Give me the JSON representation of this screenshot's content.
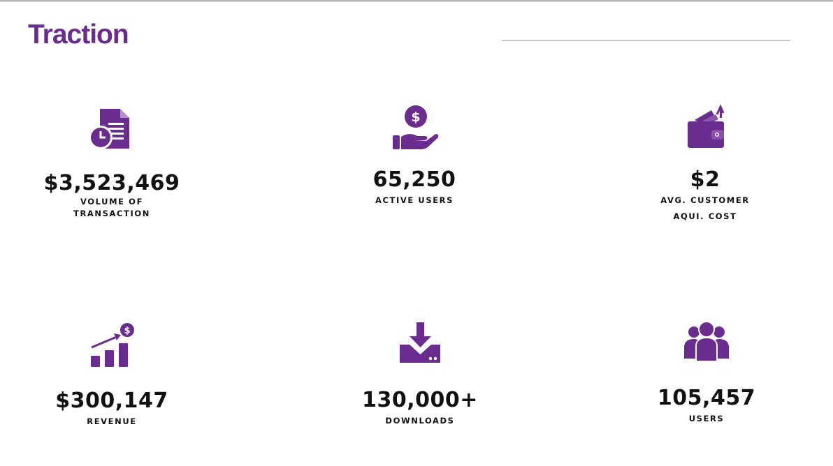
{
  "slide": {
    "title": "Traction"
  },
  "colors": {
    "accent": "#6a2c8e",
    "text": "#111111",
    "rule": "#c8c8c8"
  },
  "stats": [
    {
      "id": "volume",
      "icon": "document-clock-icon",
      "value": "$3,523,469",
      "label_lines": [
        "VOLUME OF",
        "TRANSACTION"
      ]
    },
    {
      "id": "active",
      "icon": "hand-coin-icon",
      "value": "65,250",
      "label_lines": [
        "ACTIVE USERS"
      ]
    },
    {
      "id": "cac",
      "icon": "wallet-icon",
      "value": "$2",
      "label_lines": [
        "AVG. CUSTOMER",
        "AQUI. COST"
      ]
    },
    {
      "id": "revenue",
      "icon": "revenue-growth-icon",
      "value": "$300,147",
      "label_lines": [
        "REVENUE"
      ]
    },
    {
      "id": "downloads",
      "icon": "download-icon",
      "value": "130,000+",
      "label_lines": [
        "DOWNLOADS"
      ]
    },
    {
      "id": "users",
      "icon": "users-group-icon",
      "value": "105,457",
      "label_lines": [
        "USERS"
      ]
    }
  ]
}
